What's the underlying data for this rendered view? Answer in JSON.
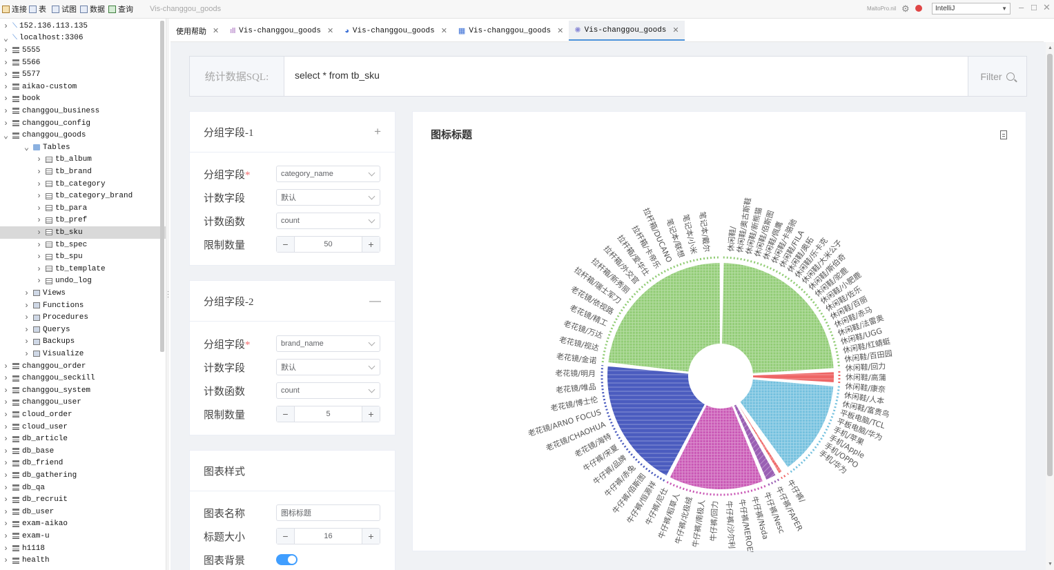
{
  "toolbar": {
    "items": [
      "连接",
      "表",
      "试图",
      "数据",
      "查询"
    ],
    "app_title": "Vis-changgou_goods",
    "brand": "MaltoPro.nil",
    "theme": "IntelliJ"
  },
  "sidebar": {
    "nodes": [
      {
        "label": "152.136.113.135",
        "level": 0,
        "icon": "connection-icon",
        "expanded": false
      },
      {
        "label": "localhost:3306",
        "level": 0,
        "icon": "connection-icon",
        "expanded": true
      },
      {
        "label": "5555",
        "level": 1,
        "icon": "database-icon",
        "expanded": false
      },
      {
        "label": "5566",
        "level": 1,
        "icon": "database-icon",
        "expanded": false
      },
      {
        "label": "5577",
        "level": 1,
        "icon": "database-icon",
        "expanded": false
      },
      {
        "label": "aikao-custom",
        "level": 1,
        "icon": "database-icon",
        "expanded": false
      },
      {
        "label": "book",
        "level": 1,
        "icon": "database-icon",
        "expanded": false
      },
      {
        "label": "changgou_business",
        "level": 1,
        "icon": "database-icon",
        "expanded": false
      },
      {
        "label": "changgou_config",
        "level": 1,
        "icon": "database-icon",
        "expanded": false
      },
      {
        "label": "changgou_goods",
        "level": 1,
        "icon": "database-icon",
        "expanded": true
      },
      {
        "label": "Tables",
        "level": 2,
        "icon": "folder-icon",
        "expanded": true
      },
      {
        "label": "tb_album",
        "level": 3,
        "icon": "table-icon",
        "expanded": false
      },
      {
        "label": "tb_brand",
        "level": 3,
        "icon": "table-icon",
        "expanded": false
      },
      {
        "label": "tb_category",
        "level": 3,
        "icon": "table-icon",
        "expanded": false
      },
      {
        "label": "tb_category_brand",
        "level": 3,
        "icon": "table-icon",
        "expanded": false
      },
      {
        "label": "tb_para",
        "level": 3,
        "icon": "table-icon",
        "expanded": false
      },
      {
        "label": "tb_pref",
        "level": 3,
        "icon": "table-icon",
        "expanded": false
      },
      {
        "label": "tb_sku",
        "level": 3,
        "icon": "table-icon",
        "expanded": false,
        "selected": true
      },
      {
        "label": "tb_spec",
        "level": 3,
        "icon": "table-icon",
        "expanded": false
      },
      {
        "label": "tb_spu",
        "level": 3,
        "icon": "table-icon",
        "expanded": false
      },
      {
        "label": "tb_template",
        "level": 3,
        "icon": "table-icon",
        "expanded": false
      },
      {
        "label": "undo_log",
        "level": 3,
        "icon": "table-icon",
        "expanded": false
      },
      {
        "label": "Views",
        "level": 2,
        "icon": "views-icon",
        "expanded": false
      },
      {
        "label": "Functions",
        "level": 2,
        "icon": "functions-icon",
        "expanded": false
      },
      {
        "label": "Procedures",
        "level": 2,
        "icon": "procedures-icon",
        "expanded": false
      },
      {
        "label": "Querys",
        "level": 2,
        "icon": "querys-icon",
        "expanded": false
      },
      {
        "label": "Backups",
        "level": 2,
        "icon": "backups-icon",
        "expanded": false
      },
      {
        "label": "Visualize",
        "level": 2,
        "icon": "visualize-icon",
        "expanded": false
      },
      {
        "label": "changgou_order",
        "level": 1,
        "icon": "database-icon",
        "expanded": false
      },
      {
        "label": "changgou_seckill",
        "level": 1,
        "icon": "database-icon",
        "expanded": false
      },
      {
        "label": "changgou_system",
        "level": 1,
        "icon": "database-icon",
        "expanded": false
      },
      {
        "label": "changgou_user",
        "level": 1,
        "icon": "database-icon",
        "expanded": false
      },
      {
        "label": "cloud_order",
        "level": 1,
        "icon": "database-icon",
        "expanded": false
      },
      {
        "label": "cloud_user",
        "level": 1,
        "icon": "database-icon",
        "expanded": false
      },
      {
        "label": "db_article",
        "level": 1,
        "icon": "database-icon",
        "expanded": false
      },
      {
        "label": "db_base",
        "level": 1,
        "icon": "database-icon",
        "expanded": false
      },
      {
        "label": "db_friend",
        "level": 1,
        "icon": "database-icon",
        "expanded": false
      },
      {
        "label": "db_gathering",
        "level": 1,
        "icon": "database-icon",
        "expanded": false
      },
      {
        "label": "db_qa",
        "level": 1,
        "icon": "database-icon",
        "expanded": false
      },
      {
        "label": "db_recruit",
        "level": 1,
        "icon": "database-icon",
        "expanded": false
      },
      {
        "label": "db_user",
        "level": 1,
        "icon": "database-icon",
        "expanded": false
      },
      {
        "label": "exam-aikao",
        "level": 1,
        "icon": "database-icon",
        "expanded": false
      },
      {
        "label": "exam-u",
        "level": 1,
        "icon": "database-icon",
        "expanded": false
      },
      {
        "label": "h1118",
        "level": 1,
        "icon": "database-icon",
        "expanded": false
      },
      {
        "label": "health",
        "level": 1,
        "icon": "database-icon",
        "expanded": false
      }
    ]
  },
  "tabs": [
    {
      "label": "使用帮助",
      "icon": "",
      "active": false
    },
    {
      "label": "Vis-changgou_goods",
      "icon": "bar-chart-icon",
      "active": false
    },
    {
      "label": "Vis-changgou_goods",
      "icon": "pie-chart-icon",
      "active": false
    },
    {
      "label": "Vis-changgou_goods",
      "icon": "treemap-icon",
      "active": false
    },
    {
      "label": "Vis-changgou_goods",
      "icon": "sunburst-icon",
      "active": true
    }
  ],
  "sql": {
    "label": "统计数据SQL:",
    "value": "select * from tb_sku",
    "filter": "Filter"
  },
  "group1": {
    "title": "分组字段-1",
    "action": "+",
    "field_label": "分组字段",
    "field_value": "category_name",
    "count_field_label": "计数字段",
    "count_field_value": "默认",
    "func_label": "计数函数",
    "func_value": "count",
    "limit_label": "限制数量",
    "limit_value": "50"
  },
  "group2": {
    "title": "分组字段-2",
    "action": "—",
    "field_label": "分组字段",
    "field_value": "brand_name",
    "count_field_label": "计数字段",
    "count_field_value": "默认",
    "func_label": "计数函数",
    "func_value": "count",
    "limit_label": "限制数量",
    "limit_value": "5"
  },
  "style": {
    "title": "图表样式",
    "name_label": "图表名称",
    "name_value": "图标标题",
    "size_label": "标题大小",
    "size_value": "16",
    "bg_label": "图表背景",
    "bg_on": true
  },
  "chart_data": {
    "type": "sunburst",
    "title": "图标标题",
    "inner": [
      {
        "name": "",
        "value": 0.24,
        "color": "#91cc75"
      },
      {
        "name": "",
        "value": 0.02,
        "color": "#ee6666"
      },
      {
        "name": "",
        "value": 0.14,
        "color": "#73c0de"
      },
      {
        "name": "",
        "value": 0.005,
        "color": "#ee6666"
      },
      {
        "name": "",
        "value": 0.01,
        "color": "#ee6666"
      },
      {
        "name": "",
        "value": 0.02,
        "color": "#9a60b4"
      },
      {
        "name": "",
        "value": 0.14,
        "color": "#c957b5"
      },
      {
        "name": "",
        "value": 0.19,
        "color": "#4b5cbf"
      },
      {
        "name": "",
        "value": 0.235,
        "color": "#91cc75"
      }
    ],
    "labels_right": [
      "休闲鞋/",
      "休闲鞋/奥古斯鞋",
      "休闲鞋/新熊猫",
      "休闲鞋/佰斯图",
      "休闲鞋/佩鹰",
      "休闲鞋/卡骆驰",
      "休闲鞋/FILA",
      "休闲鞋/奥拓",
      "休闲鞋/乐卡克",
      "休闲鞋/大米公子",
      "休闲鞋/斯伯奇",
      "休闲鞋/驼鹿",
      "休闲鞋/小肥鹿",
      "休闲鞋/佐乐",
      "休闲鞋/百丽",
      "休闲鞋/赤马",
      "休闲鞋/法雷奥",
      "休闲鞋/UGG",
      "休闲鞋/红蜻蜓",
      "休闲鞋/百田园",
      "休闲鞋/回力",
      "休闲鞋/高蒲",
      "休闲鞋/康奈",
      "休闲鞋/人本",
      "休闲鞋/富贵鸟",
      "平板电脑/TCL",
      "平板电脑/华为",
      "手机/苹果",
      "手机/Apple",
      "手机/OPPO",
      "手机/华为"
    ],
    "labels_left": [
      "牛仔裤/",
      "牛仔裤/FAPER",
      "牛仔裤/Nesc",
      "牛仔裤/Nsda",
      "牛仔裤/MEROEUO",
      "牛仔裤/沙尔利",
      "牛仔裤/回力",
      "牛仔裤/南极人",
      "牛仔裤/北极绒",
      "牛仔裤/稻草人",
      "牛仔裤/尼仕",
      "牛仔裤/恒源祥",
      "牛仔裤/佰斯图",
      "牛仔裤/赤兔",
      "牛仔裤/品牌",
      "牛仔裤/宋夏",
      "老花镜/海特",
      "老花镜/CHAOHUA",
      "老花镜/ARNO FOCUS",
      "老花镜/博士伦",
      "老花镜/唯品",
      "老花镜/明月",
      "老花镜/金诺",
      "老花镜/视达",
      "老花镜/万达",
      "老花镜/精工",
      "老花镜/依视路",
      "拉杆箱/瑞士军刀",
      "拉杆箱/新秀丽",
      "拉杆箱/外交官",
      "拉杆箱/爱华仕",
      "拉杆箱/卡帝乐",
      "拉杆箱/DUCANO",
      "笔记本/联想",
      "笔记本/小米",
      "笔记本/戴尔"
    ]
  }
}
